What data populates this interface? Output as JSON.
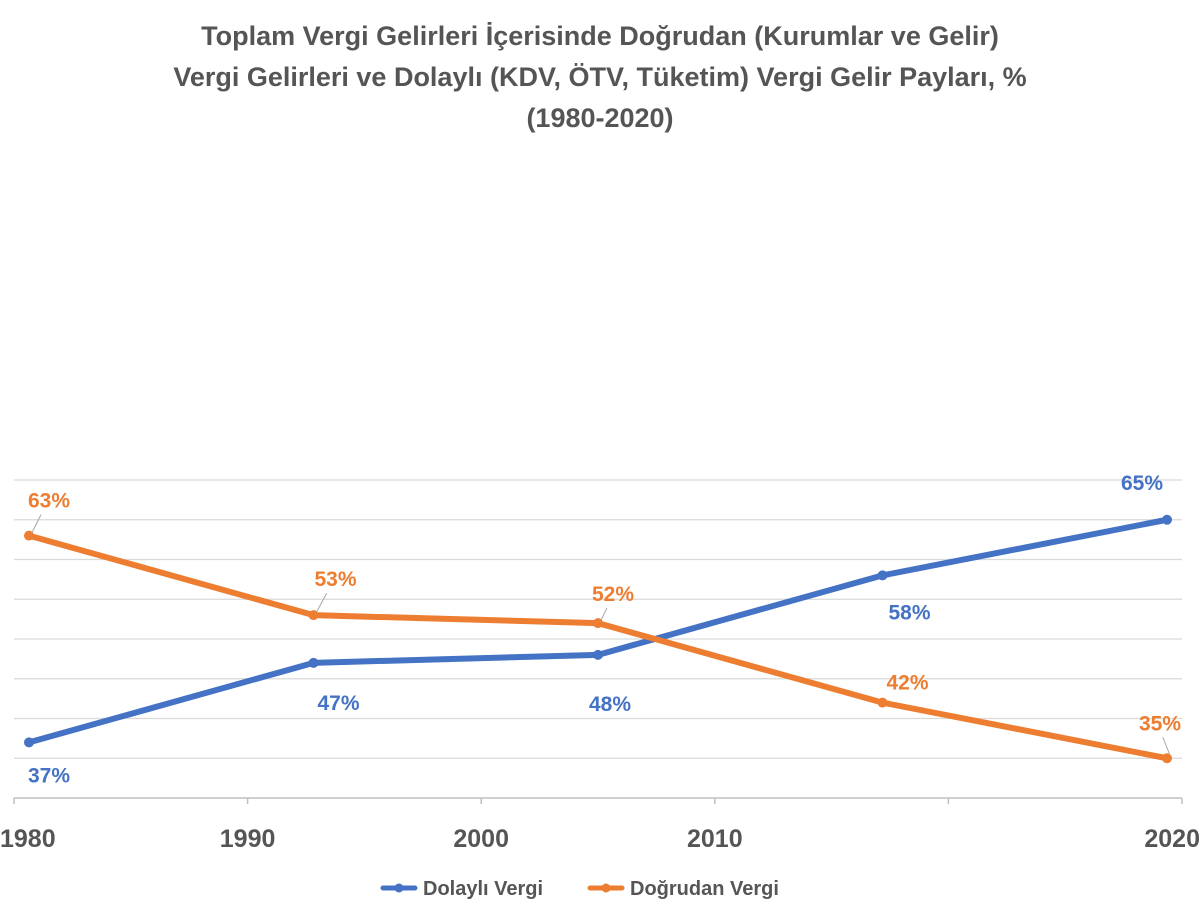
{
  "chart_data": {
    "type": "line",
    "title_lines": [
      "Toplam Vergi Gelirleri İçerisinde Doğrudan (Kurumlar ve Gelir)",
      "Vergi Gelirleri ve Dolaylı (KDV, ÖTV, Tüketim) Vergi Gelir Payları, %",
      "(1980-2020)"
    ],
    "xlabel": "",
    "ylabel": "",
    "x": [
      "1980",
      "1990",
      "2000",
      "2010",
      "2020"
    ],
    "ylim": [
      30,
      70
    ],
    "y_axis_visible": false,
    "grid": true,
    "legend_position": "bottom",
    "series": [
      {
        "name": "Dolaylı Vergi",
        "color": "#4472C4",
        "values": [
          37,
          47,
          48,
          58,
          65
        ],
        "data_labels": [
          "37%",
          "47%",
          "48%",
          "58%",
          "65%"
        ]
      },
      {
        "name": "Doğrudan Vergi",
        "color": "#ED7D31",
        "values": [
          63,
          53,
          52,
          42,
          35
        ],
        "data_labels": [
          "63%",
          "53%",
          "52%",
          "42%",
          "35%"
        ]
      }
    ]
  }
}
